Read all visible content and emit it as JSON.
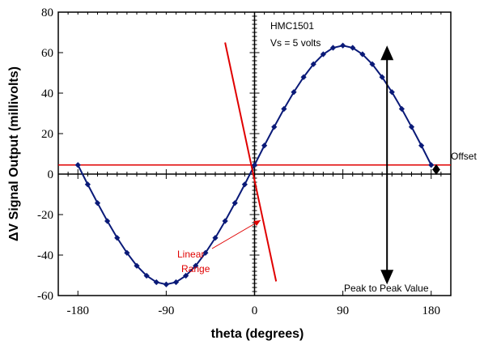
{
  "chart_data": {
    "type": "line",
    "xlabel": "theta (degrees)",
    "ylabel": "ΔV Signal Output (millivolts)",
    "xlim": [
      -200,
      200
    ],
    "ylim": [
      -60,
      80
    ],
    "x_ticks": [
      -180,
      -90,
      0,
      90,
      180
    ],
    "y_ticks": [
      -60,
      -40,
      -20,
      0,
      20,
      40,
      60,
      80
    ],
    "grid": false,
    "series": [
      {
        "x": [
          -180,
          -170,
          -160,
          -150,
          -140,
          -130,
          -120,
          -110,
          -100,
          -90,
          -80,
          -70,
          -60,
          -50,
          -40,
          -30,
          -20,
          -10,
          0,
          10,
          20,
          30,
          40,
          50,
          60,
          70,
          80,
          90,
          100,
          110,
          120,
          130,
          140,
          150,
          160,
          170,
          180
        ],
        "y": [
          4.5,
          -5.1,
          -14.3,
          -23.2,
          -31.5,
          -38.9,
          -45.3,
          -50.2,
          -53.4,
          -54.5,
          -53.4,
          -50.2,
          -45.3,
          -38.9,
          -31.5,
          -23.2,
          -14.3,
          -5.1,
          4.5,
          14.1,
          23.3,
          32.2,
          40.5,
          47.9,
          54.3,
          59.2,
          62.4,
          63.5,
          62.4,
          59.2,
          54.3,
          47.9,
          40.5,
          32.2,
          23.3,
          14.1,
          4.5
        ]
      }
    ],
    "series_color": "#0a1a78",
    "marker_color": "#0a1a78",
    "annotations": {
      "device_label": "HMC1501",
      "supply_label": "Vs = 5 volts",
      "offset_label": "Offset",
      "offset_value": 4.5,
      "linear_range_line1": "Linear",
      "linear_range_line2": "Range",
      "linear_range_color": "#e00000",
      "linear_range_segment": {
        "x": [
          -30,
          22
        ],
        "y": [
          65,
          -53
        ]
      },
      "peak_to_peak_label": "Peak to Peak Value",
      "peak_to_peak": {
        "x": 135,
        "y": [
          63.5,
          -54.5
        ]
      }
    }
  }
}
